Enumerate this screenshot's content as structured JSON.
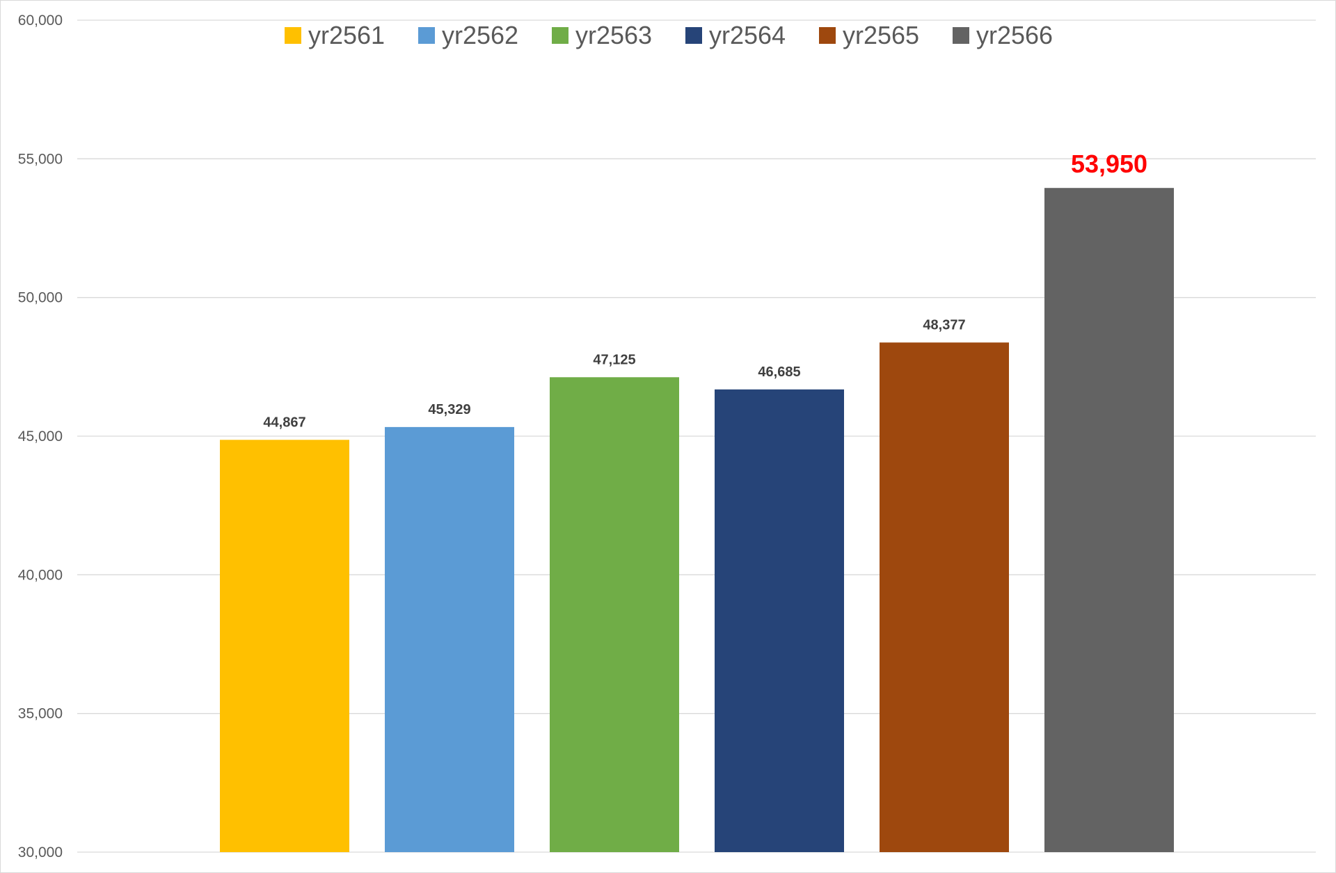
{
  "chart_data": {
    "type": "bar",
    "title": "",
    "xlabel": "",
    "ylabel": "",
    "ylim": [
      30000,
      60000
    ],
    "yticks": [
      30000,
      35000,
      40000,
      45000,
      50000,
      55000,
      60000
    ],
    "ytick_labels": [
      "30,000",
      "35,000",
      "40,000",
      "45,000",
      "50,000",
      "55,000",
      "60,000"
    ],
    "grid": true,
    "legend_position": "top",
    "series": [
      {
        "name": "yr2561",
        "value": 44867,
        "label": "44,867",
        "color": "#FFC000"
      },
      {
        "name": "yr2562",
        "value": 45329,
        "label": "45,329",
        "color": "#5B9BD5"
      },
      {
        "name": "yr2563",
        "value": 47125,
        "label": "47,125",
        "color": "#70AD47"
      },
      {
        "name": "yr2564",
        "value": 46685,
        "label": "46,685",
        "color": "#264478"
      },
      {
        "name": "yr2565",
        "value": 48377,
        "label": "48,377",
        "color": "#9E480E"
      },
      {
        "name": "yr2566",
        "value": 53950,
        "label": "53,950",
        "color": "#636363",
        "label_color": "#FF0000",
        "highlight": true
      }
    ]
  }
}
